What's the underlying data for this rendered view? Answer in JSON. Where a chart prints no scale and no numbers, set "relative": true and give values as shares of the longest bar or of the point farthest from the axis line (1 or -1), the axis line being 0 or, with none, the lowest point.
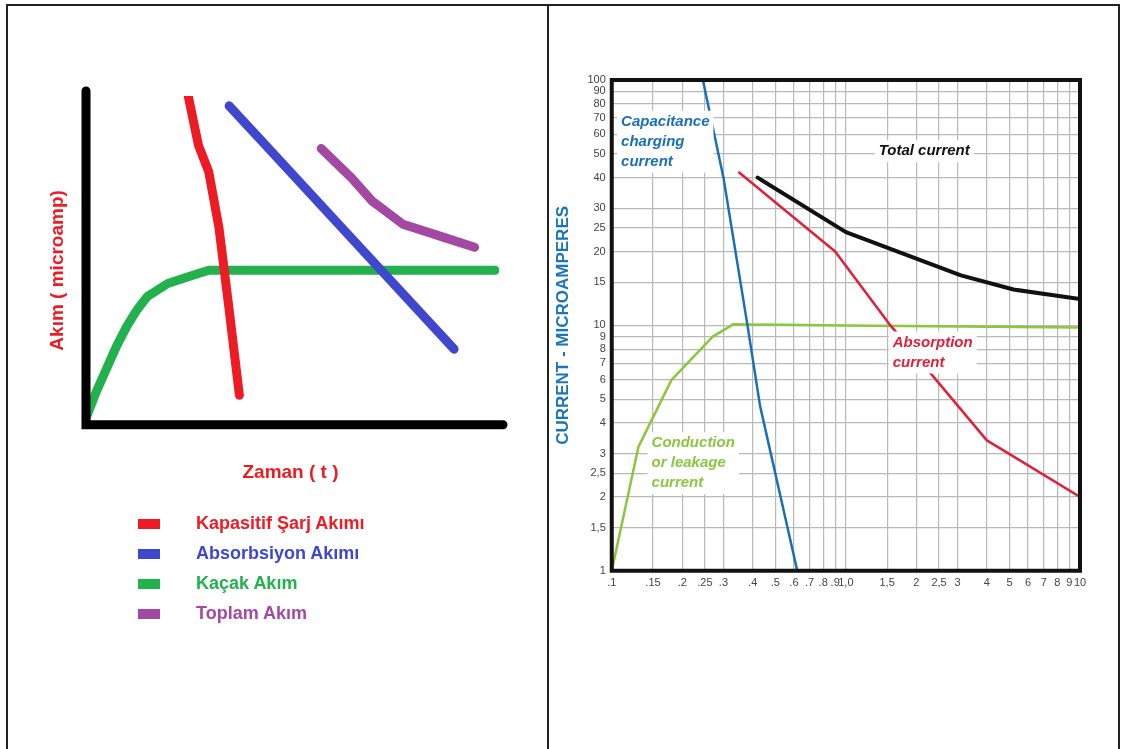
{
  "chart_data": [
    {
      "type": "line",
      "relative": true,
      "xlabel": "Zaman ( t )",
      "ylabel": "Akım ( microamp)",
      "legend": "bottom",
      "categories": [
        null,
        null,
        null,
        null,
        null,
        null,
        null,
        null,
        null,
        null,
        null,
        null,
        null,
        null,
        null,
        null,
        null,
        null,
        null,
        null,
        null,
        null,
        null,
        null,
        null,
        null,
        null,
        null,
        null,
        null,
        null,
        null,
        null,
        null,
        null,
        null,
        null,
        null,
        null,
        null,
        null
      ],
      "series": [
        {
          "name": "Kapasitif Şarj Akımı",
          "color": "#ed1c24",
          "values": [
            null,
            null,
            null,
            null,
            null,
            null,
            null,
            null,
            null,
            null,
            1,
            0.85,
            0.77,
            0.6,
            0.35,
            0.09,
            null,
            null,
            null,
            null,
            null,
            null,
            null,
            null,
            null,
            null,
            null,
            null,
            null,
            null,
            null,
            null,
            null,
            null,
            null,
            null,
            null,
            null,
            null,
            null,
            null
          ]
        },
        {
          "name": "Absorbsiyon Akımı",
          "color": "#3f48cc",
          "values": [
            null,
            null,
            null,
            null,
            null,
            null,
            null,
            null,
            null,
            null,
            null,
            null,
            null,
            null,
            0.97,
            null,
            null,
            null,
            null,
            null,
            null,
            null,
            null,
            null,
            null,
            0.6,
            null,
            null,
            null,
            null,
            null,
            null,
            null,
            null,
            null,
            null,
            0.23,
            null,
            null,
            null,
            null
          ]
        },
        {
          "name": "Kaçak Akım",
          "color": "#22b14c",
          "values": [
            0.02,
            0.1,
            0.17,
            0.24,
            0.3,
            0.35,
            0.39,
            null,
            0.43,
            null,
            0.45,
            null,
            0.47,
            null,
            null,
            null,
            null,
            null,
            null,
            null,
            null,
            null,
            null,
            null,
            null,
            null,
            null,
            null,
            null,
            null,
            null,
            null,
            null,
            null,
            null,
            null,
            null,
            null,
            null,
            null,
            0.47
          ]
        },
        {
          "name": "Toplam Akım",
          "color": "#a349a4",
          "values": [
            null,
            null,
            null,
            null,
            null,
            null,
            null,
            null,
            null,
            null,
            null,
            null,
            null,
            null,
            null,
            null,
            null,
            null,
            null,
            null,
            null,
            null,
            null,
            0.84,
            null,
            null,
            0.75,
            null,
            0.68,
            null,
            null,
            0.61,
            null,
            null,
            null,
            0.57,
            null,
            null,
            0.54,
            null,
            null
          ]
        }
      ]
    },
    {
      "type": "line",
      "ylabel": "CURRENT - MICROAMPERES",
      "log": "xy",
      "grid": true,
      "xlim": [
        0.1,
        10
      ],
      "ylim": [
        1,
        100
      ],
      "xticks": [
        {
          "value": 0.1,
          "label": ".1"
        },
        {
          "value": 0.15,
          "label": ".15"
        },
        {
          "value": 0.2,
          "label": ".2"
        },
        {
          "value": 0.25,
          "label": ".25"
        },
        {
          "value": 0.3,
          "label": ".3"
        },
        {
          "value": 0.4,
          "label": ".4"
        },
        {
          "value": 0.5,
          "label": ".5"
        },
        {
          "value": 0.6,
          "label": ".6"
        },
        {
          "value": 0.7,
          "label": ".7"
        },
        {
          "value": 0.8,
          "label": ".8"
        },
        {
          "value": 0.9,
          "label": ".9"
        },
        {
          "value": 1,
          "label": "1,0"
        },
        {
          "value": 1.5,
          "label": "1,5"
        },
        2,
        {
          "value": 2.5,
          "label": "2,5"
        },
        3,
        4,
        5,
        6,
        7,
        8,
        9,
        10
      ],
      "yticks": [
        1,
        {
          "value": 1.5,
          "label": "1,5"
        },
        2,
        {
          "value": 2.5,
          "label": "2,5"
        },
        3,
        4,
        5,
        6,
        7,
        8,
        9,
        10,
        15,
        20,
        25,
        30,
        40,
        50,
        60,
        70,
        80,
        90,
        100
      ],
      "series": [
        {
          "name": "Capacitance charging current",
          "color": "#1a6fb5",
          "x": [
            0.245,
            0.3,
            0.38,
            0.43,
            0.62
          ],
          "values": [
            100,
            40,
            10,
            4.7,
            1
          ]
        },
        {
          "name": "Total current",
          "color": "#111111",
          "x": [
            0.42,
            1.0,
            1.55,
            3.1,
            5.2,
            9,
            10
          ],
          "values": [
            40,
            24,
            20.5,
            16,
            14,
            13,
            12.8
          ]
        },
        {
          "name": "Absorption current",
          "color": "#e0203a",
          "x": [
            0.35,
            0.9,
            1.55,
            4,
            10
          ],
          "values": [
            42,
            20,
            10,
            3.4,
            2
          ]
        },
        {
          "name": "Conduction or leakage current",
          "color": "#8cc63f",
          "x": [
            0.1,
            0.13,
            0.18,
            0.27,
            0.33,
            1,
            10
          ],
          "values": [
            1,
            3.2,
            6,
            9,
            10.1,
            10,
            9.8
          ]
        }
      ]
    }
  ]
}
